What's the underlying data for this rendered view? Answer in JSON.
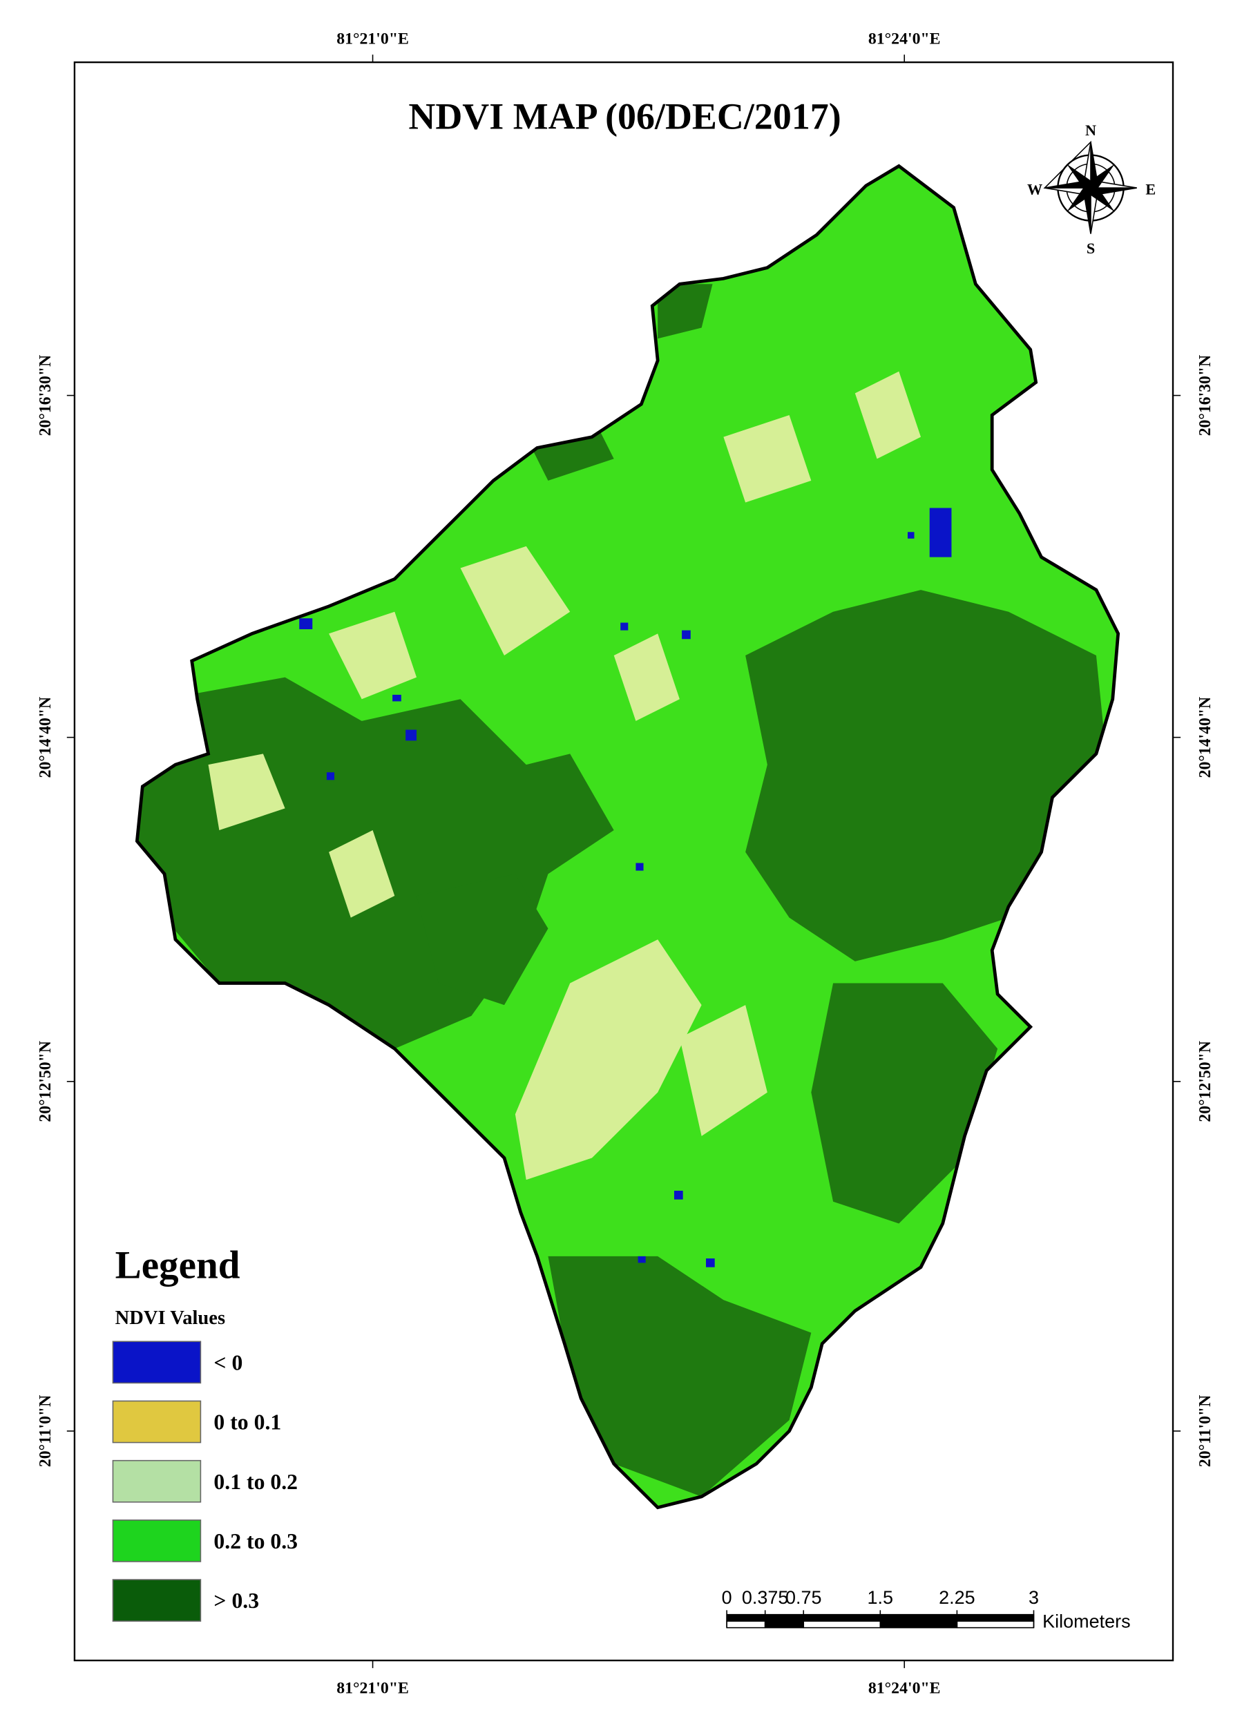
{
  "title": "NDVI MAP (06/DEC/2017)",
  "graticule": {
    "longitudes": [
      "81°21'0\"E",
      "81°24'0\"E"
    ],
    "latitudes": [
      "20°16'30\"N",
      "20°14'40\"N",
      "20°12'50\"N",
      "20°11'0\"N"
    ]
  },
  "compass": {
    "n": "N",
    "s": "S",
    "e": "E",
    "w": "W"
  },
  "legend": {
    "title": "Legend",
    "subtitle": "NDVI Values",
    "items": [
      {
        "label": "< 0",
        "color": "#0a14c8"
      },
      {
        "label": "0 to 0.1",
        "color": "#e0c840"
      },
      {
        "label": "0.1 to 0.2",
        "color": "#b4e0a4"
      },
      {
        "label": "0.2 to 0.3",
        "color": "#1ed41e"
      },
      {
        "label": "> 0.3",
        "color": "#0a5c0a"
      }
    ]
  },
  "scale_bar": {
    "ticks": [
      0,
      0.375,
      0.75,
      1.5,
      2.25,
      3
    ],
    "unit": "Kilometers"
  }
}
